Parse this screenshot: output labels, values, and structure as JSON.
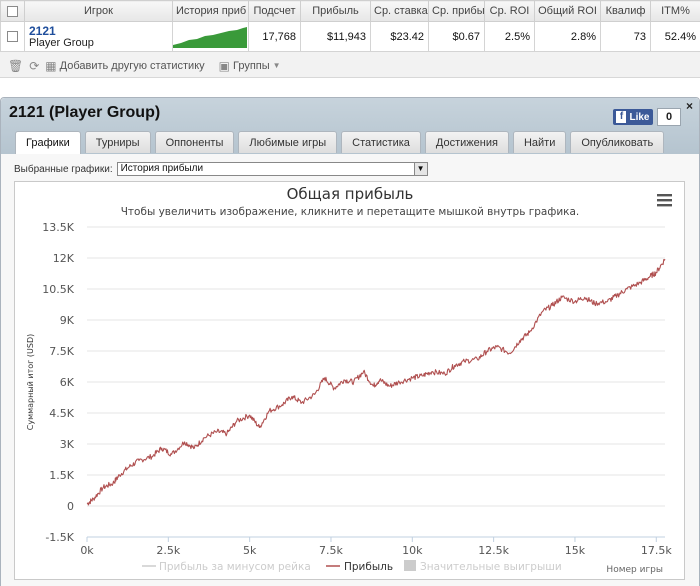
{
  "stats": {
    "headers": [
      "Игрок",
      "История приб",
      "Подсчет",
      "Прибыль",
      "Ср. ставка",
      "Ср. прибы",
      "Ср. ROI",
      "Общий ROI",
      "Квалиф",
      "ITM%"
    ],
    "row": {
      "player_name": "2121",
      "player_group": "Player Group",
      "count": "17,768",
      "profit": "$11,943",
      "avg_stake": "$23.42",
      "avg_profit": "$0.67",
      "avg_roi": "2.5%",
      "total_roi": "2.8%",
      "qualified": "73",
      "itm": "52.4%"
    }
  },
  "toolbar": {
    "add_stats_label": "Добавить другую статистику",
    "groups_label": "Группы"
  },
  "panel": {
    "title": "2121 (Player Group)",
    "fb_like": "Like",
    "fb_count": "0",
    "close_label": "×",
    "tabs": [
      "Графики",
      "Турниры",
      "Оппоненты",
      "Любимые игры",
      "Статистика",
      "Достижения",
      "Найти",
      "Опубликовать"
    ],
    "active_tab": "Графики"
  },
  "chart_select": {
    "label": "Выбранные графики:",
    "value": "История прибыли"
  },
  "chart_data": {
    "type": "line",
    "title": "Общая прибыль",
    "subtitle": "Чтобы увеличить изображение, кликните и перетащите мышкой внутрь графика.",
    "ylabel": "Суммарный итог (USD)",
    "xlabel": "Номер игры",
    "ylim": [
      -1500,
      13500
    ],
    "xlim": [
      0,
      17768
    ],
    "y_ticks": [
      "-1.5K",
      "0",
      "1.5K",
      "3K",
      "4.5K",
      "6K",
      "7.5K",
      "9K",
      "10.5K",
      "12K",
      "13.5K"
    ],
    "x_ticks": [
      "0k",
      "2.5k",
      "5k",
      "7.5k",
      "10k",
      "12.5k",
      "15k",
      "17.5k"
    ],
    "grid": true,
    "legend": "bottom",
    "colors": {
      "profit": "#b05050",
      "profit_rake": "#cccccc",
      "big_wins": "#cccccc"
    },
    "series": [
      {
        "name": "Прибыль за минусом рейка",
        "visible": false,
        "values": []
      },
      {
        "name": "Прибыль",
        "visible": true,
        "x": [
          0,
          200,
          500,
          800,
          1000,
          1300,
          1600,
          2000,
          2300,
          2600,
          3000,
          3300,
          3600,
          4000,
          4300,
          4600,
          5000,
          5300,
          5600,
          6000,
          6300,
          6600,
          7000,
          7300,
          7600,
          7900,
          8200,
          8500,
          8800,
          9000,
          9300,
          9600,
          10000,
          10300,
          10600,
          11000,
          11300,
          11600,
          12000,
          12300,
          12600,
          13000,
          13300,
          13600,
          14000,
          14300,
          14600,
          15000,
          15300,
          15600,
          16000,
          16300,
          16600,
          17000,
          17300,
          17500,
          17768
        ],
        "values": [
          100,
          350,
          900,
          1100,
          1500,
          1900,
          2200,
          2400,
          2800,
          2500,
          3100,
          2800,
          3300,
          3600,
          3500,
          4100,
          4400,
          3800,
          4600,
          4900,
          5300,
          5000,
          5400,
          6200,
          5700,
          6100,
          6000,
          6500,
          5800,
          6100,
          5800,
          6000,
          6200,
          6300,
          6500,
          6400,
          6800,
          7000,
          7100,
          7500,
          7700,
          7400,
          8000,
          8400,
          9400,
          9700,
          10100,
          9900,
          10100,
          9800,
          9900,
          10200,
          10500,
          10800,
          11100,
          11300,
          11943
        ]
      },
      {
        "name": "Значительные выигрыши",
        "visible": false,
        "values": []
      }
    ]
  }
}
